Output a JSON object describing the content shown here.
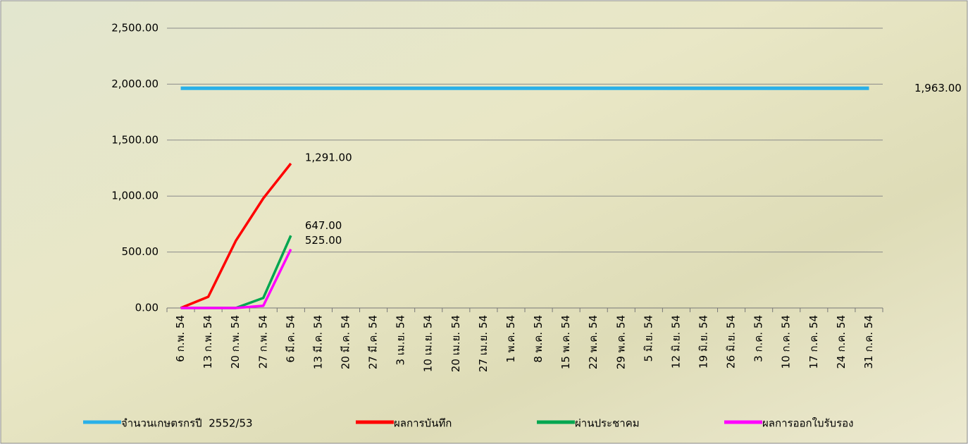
{
  "chart_data": {
    "type": "line",
    "categories": [
      "6 ก.พ. 54",
      "13 ก.พ. 54",
      "20 ก.พ. 54",
      "27 ก.พ. 54",
      "6 มี.ค. 54",
      "13 มี.ค. 54",
      "20 มี.ค. 54",
      "27 มี.ค. 54",
      "3 เม.ย. 54",
      "10 เม.ย. 54",
      "20 เม.ย. 54",
      "27 เม.ย. 54",
      "1 พ.ค. 54",
      "8 พ.ค. 54",
      "15 พ.ค. 54",
      "22 พ.ค. 54",
      "29 พ.ค. 54",
      "5 มิ.ย. 54",
      "12 มิ.ย. 54",
      "19 มิ.ย. 54",
      "26 มิ.ย. 54",
      "3 ก.ค. 54",
      "10 ก.ค. 54",
      "17 ก.ค. 54",
      "24 ก.ค. 54",
      "31 ก.ค. 54"
    ],
    "series": [
      {
        "name": "จำนวนเกษตรกรปี  2552/53",
        "color": "#2ab0e8",
        "values": [
          1963,
          1963,
          1963,
          1963,
          1963,
          1963,
          1963,
          1963,
          1963,
          1963,
          1963,
          1963,
          1963,
          1963,
          1963,
          1963,
          1963,
          1963,
          1963,
          1963,
          1963,
          1963,
          1963,
          1963,
          1963,
          1963
        ],
        "value_labels": [
          null,
          null,
          null,
          null,
          null,
          null,
          null,
          null,
          null,
          null,
          null,
          null,
          null,
          null,
          null,
          null,
          null,
          null,
          null,
          null,
          null,
          null,
          null,
          null,
          null,
          "1,963.00"
        ]
      },
      {
        "name": "ผลการบันทึก",
        "color": "#ff0000",
        "values": [
          0,
          100,
          600,
          980,
          1291,
          null,
          null,
          null,
          null,
          null,
          null,
          null,
          null,
          null,
          null,
          null,
          null,
          null,
          null,
          null,
          null,
          null,
          null,
          null,
          null,
          null
        ],
        "value_labels": [
          null,
          null,
          null,
          null,
          "1,291.00",
          null,
          null,
          null,
          null,
          null,
          null,
          null,
          null,
          null,
          null,
          null,
          null,
          null,
          null,
          null,
          null,
          null,
          null,
          null,
          null,
          null
        ]
      },
      {
        "name": "ผ่านประชาคม",
        "color": "#00a650",
        "values": [
          0,
          0,
          0,
          90,
          647,
          null,
          null,
          null,
          null,
          null,
          null,
          null,
          null,
          null,
          null,
          null,
          null,
          null,
          null,
          null,
          null,
          null,
          null,
          null,
          null,
          null
        ],
        "value_labels": [
          null,
          null,
          null,
          null,
          "647.00",
          null,
          null,
          null,
          null,
          null,
          null,
          null,
          null,
          null,
          null,
          null,
          null,
          null,
          null,
          null,
          null,
          null,
          null,
          null,
          null,
          null
        ]
      },
      {
        "name": "ผลการออกใบรับรอง",
        "color": "#ff00ff",
        "values": [
          0,
          0,
          0,
          20,
          525,
          null,
          null,
          null,
          null,
          null,
          null,
          null,
          null,
          null,
          null,
          null,
          null,
          null,
          null,
          null,
          null,
          null,
          null,
          null,
          null,
          null
        ],
        "value_labels": [
          null,
          null,
          null,
          null,
          "525.00",
          null,
          null,
          null,
          null,
          null,
          null,
          null,
          null,
          null,
          null,
          null,
          null,
          null,
          null,
          null,
          null,
          null,
          null,
          null,
          null,
          null
        ]
      }
    ],
    "ylim": [
      0,
      2500
    ],
    "yticks": [
      {
        "value": 0,
        "label": "0.00"
      },
      {
        "value": 500,
        "label": "500.00"
      },
      {
        "value": 1000,
        "label": "1,000.00"
      },
      {
        "value": 1500,
        "label": "1,500.00"
      },
      {
        "value": 2000,
        "label": "2,000.00"
      },
      {
        "value": 2500,
        "label": "2,500.00"
      }
    ],
    "grid": true,
    "legend": "bottom"
  }
}
